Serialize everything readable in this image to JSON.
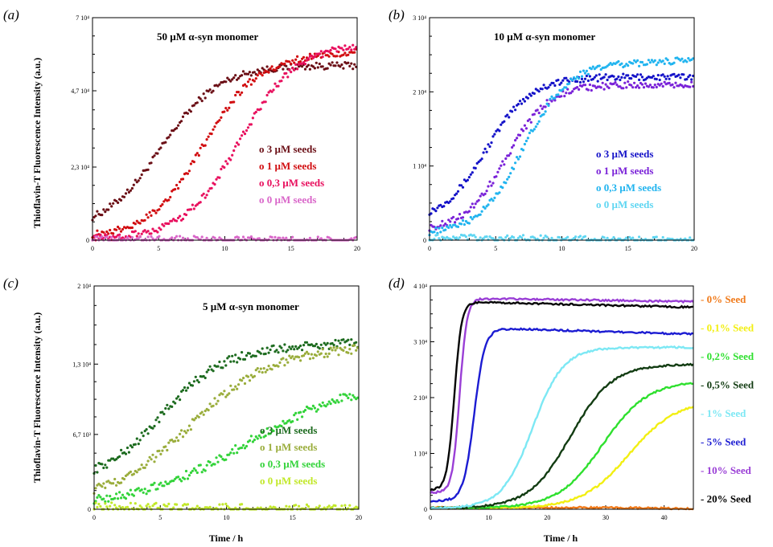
{
  "chart_data": [
    {
      "panel": "(a)",
      "type": "scatter",
      "title": "50 µM α-syn monomer",
      "ylabel": "Thioflavin-T Fluorescence Intensity (a.u.)",
      "xlabel": "",
      "xlim": [
        0,
        20
      ],
      "ylim": [
        0,
        70000
      ],
      "xticks": [
        "0",
        "5",
        "10",
        "15",
        "20"
      ],
      "yticks": [
        {
          "value": 0,
          "label": "0"
        },
        {
          "value": 23000,
          "label": "2,3 10⁴"
        },
        {
          "value": 47000,
          "label": "4,7 10⁴"
        },
        {
          "value": 70000,
          "label": "7 10⁴"
        }
      ],
      "legend": "bottom-right",
      "series": [
        {
          "name": "3 µM seeds",
          "color": "#6b0f16",
          "model": {
            "base": 3000,
            "top": 55000,
            "t50": 5.2,
            "k": 0.46,
            "slope": 0
          }
        },
        {
          "name": "1 µM seeds",
          "color": "#d10d10",
          "model": {
            "base": 1000,
            "top": 56000,
            "t50": 8.2,
            "k": 0.5,
            "slope": 300
          }
        },
        {
          "name": "0,3 µM seeds",
          "color": "#e8105e",
          "model": {
            "base": 500,
            "top": 60000,
            "t50": 11.0,
            "k": 0.48,
            "slope": 200
          }
        },
        {
          "name": "0 µM seeds",
          "color": "#d966c9",
          "model": {
            "base": 300,
            "top": 0,
            "t50": 10,
            "k": 0.5,
            "slope": 0
          }
        }
      ]
    },
    {
      "panel": "(b)",
      "type": "scatter",
      "title": "10 µM α-syn monomer",
      "ylabel": "",
      "xlabel": "",
      "xlim": [
        0,
        20
      ],
      "ylim": [
        0,
        30000
      ],
      "xticks": [
        "0",
        "5",
        "10",
        "15",
        "20"
      ],
      "yticks": [
        {
          "value": 0,
          "label": "0"
        },
        {
          "value": 10000,
          "label": "1 10⁴"
        },
        {
          "value": 20000,
          "label": "2 10⁴"
        },
        {
          "value": 30000,
          "label": "3 10⁴"
        }
      ],
      "legend": "bottom-right",
      "series": [
        {
          "name": "3 µM seeds",
          "color": "#1412c8",
          "model": {
            "base": 2500,
            "top": 22000,
            "t50": 4.3,
            "k": 0.6,
            "slope": 0
          }
        },
        {
          "name": "1 µM seeds",
          "color": "#7a22d8",
          "model": {
            "base": 1200,
            "top": 21000,
            "t50": 5.8,
            "k": 0.62,
            "slope": 0
          }
        },
        {
          "name": "0,3 µM seeds",
          "color": "#21b4ef",
          "model": {
            "base": 800,
            "top": 23500,
            "t50": 7.0,
            "k": 0.6,
            "slope": 60
          }
        },
        {
          "name": "0 µM seeds",
          "color": "#5fd6f2",
          "model": {
            "base": 300,
            "top": 0,
            "t50": 10,
            "k": 0.5,
            "slope": 0
          }
        }
      ]
    },
    {
      "panel": "(c)",
      "type": "scatter",
      "title": "5 µM α-syn monomer",
      "ylabel": "Thioflavin-T Fluorescence Intensity (a.u.)",
      "xlabel": "Time / h",
      "xlim": [
        0,
        20
      ],
      "ylim": [
        0,
        20000
      ],
      "xticks": [
        "0",
        "5",
        "10",
        "15",
        "20"
      ],
      "yticks": [
        {
          "value": 0,
          "label": "0"
        },
        {
          "value": 6700,
          "label": "6,7 10³"
        },
        {
          "value": 13000,
          "label": "1,3 10⁴"
        },
        {
          "value": 20000,
          "label": "2 10⁴"
        }
      ],
      "legend": "bottom-right",
      "series": [
        {
          "name": "3 µM seeds",
          "color": "#1d6b1f",
          "model": {
            "base": 2500,
            "top": 14000,
            "t50": 5.0,
            "k": 0.45,
            "slope": 60
          }
        },
        {
          "name": "1 µM seeds",
          "color": "#9aad3c",
          "model": {
            "base": 800,
            "top": 13500,
            "t50": 7.0,
            "k": 0.35,
            "slope": 80
          }
        },
        {
          "name": "0,3 µM seeds",
          "color": "#33d33a",
          "model": {
            "base": 300,
            "top": 11500,
            "t50": 11.5,
            "k": 0.25,
            "slope": 0
          }
        },
        {
          "name": "0 µM seeds",
          "color": "#c2e82a",
          "model": {
            "base": 200,
            "top": 0,
            "t50": 10,
            "k": 0.5,
            "slope": 0
          }
        }
      ]
    },
    {
      "panel": "(d)",
      "type": "line",
      "title": "",
      "ylabel": "",
      "xlabel": "Time / h",
      "xlim": [
        0,
        45
      ],
      "ylim": [
        0,
        40000
      ],
      "xticks": [
        "0",
        "10",
        "20",
        "30",
        "40"
      ],
      "yticks": [
        {
          "value": 0,
          "label": "0"
        },
        {
          "value": 10000,
          "label": "1 10⁴"
        },
        {
          "value": 20000,
          "label": "2 10⁴"
        },
        {
          "value": 30000,
          "label": "3 10⁴"
        },
        {
          "value": 40000,
          "label": "4 10⁴"
        }
      ],
      "legend": "right",
      "series": [
        {
          "name": "0% Seed",
          "color": "#f07a1a",
          "model": {
            "base": 300,
            "top": 0,
            "t50": 40,
            "k": 0.2,
            "slope": 0
          }
        },
        {
          "name": "0,1% Seed",
          "color": "#f2ef12",
          "model": {
            "base": 200,
            "top": 19500,
            "t50": 34.0,
            "k": 0.25,
            "slope": 0
          }
        },
        {
          "name": "0,2% Seed",
          "color": "#2fe02f",
          "model": {
            "base": 200,
            "top": 23000,
            "t50": 29.5,
            "k": 0.26,
            "slope": 0
          }
        },
        {
          "name": "0,5% Seed",
          "color": "#123c12",
          "model": {
            "base": 200,
            "top": 26000,
            "t50": 24.0,
            "k": 0.28,
            "slope": 0
          }
        },
        {
          "name": "1% Seed",
          "color": "#7de8f4",
          "model": {
            "base": 200,
            "top": 29000,
            "t50": 17.5,
            "k": 0.38,
            "slope": 0
          }
        },
        {
          "name": "5% Seed",
          "color": "#1c1cd2",
          "model": {
            "base": 1500,
            "top": 32500,
            "t50": 7.5,
            "k": 1.1,
            "slope": -30
          }
        },
        {
          "name": "10% Seed",
          "color": "#9a3fd6",
          "model": {
            "base": 3000,
            "top": 37800,
            "t50": 5.0,
            "k": 1.6,
            "slope": -15
          }
        },
        {
          "name": "20% Seed",
          "color": "#050505",
          "model": {
            "base": 3500,
            "top": 37200,
            "t50": 4.1,
            "k": 1.6,
            "slope": -25
          }
        }
      ]
    }
  ]
}
